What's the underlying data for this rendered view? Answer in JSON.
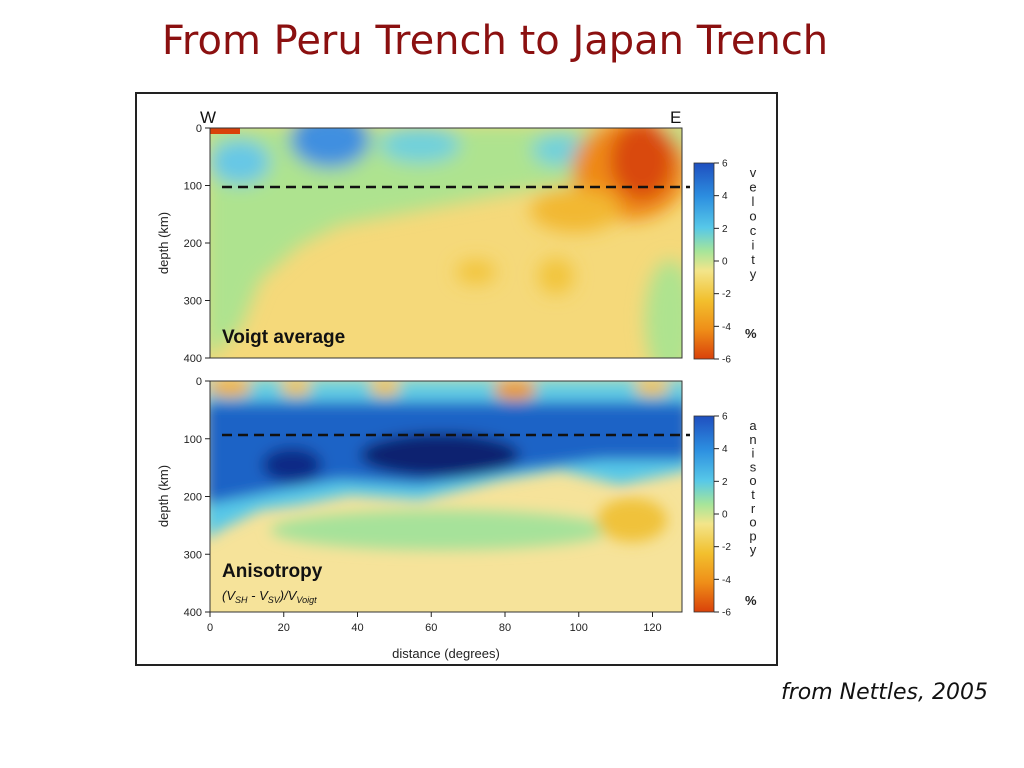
{
  "slide": {
    "title": "From Peru Trench to Japan Trench",
    "credit": "from Nettles, 2005"
  },
  "chart_data": [
    {
      "type": "heatmap",
      "panel_label": "Voigt average",
      "direction_labels": [
        "W",
        "E"
      ],
      "ylabel": "depth (km)",
      "xlim": [
        0,
        128
      ],
      "ylim": [
        0,
        400
      ],
      "y_ticks": [
        "0",
        "100",
        "200",
        "300",
        "400"
      ],
      "reference_depth_km": 107,
      "colorbar": {
        "label": "velocity",
        "unit": "%",
        "range": [
          -6,
          6
        ],
        "ticks": [
          "6",
          "4",
          "2",
          "0",
          "-2",
          "-4",
          "-6"
        ]
      },
      "features": [
        {
          "kind": "slow",
          "x": 115,
          "y": 60,
          "value": -5
        },
        {
          "kind": "slow",
          "x": 95,
          "y": 135,
          "value": -2.5
        },
        {
          "kind": "fast",
          "x": 32,
          "y": 40,
          "value": 3
        },
        {
          "kind": "fast",
          "x": 58,
          "y": 30,
          "value": 2
        },
        {
          "kind": "fast",
          "x": 10,
          "y": 60,
          "value": 1.5
        },
        {
          "kind": "slow",
          "x": 72,
          "y": 255,
          "value": -1.5
        },
        {
          "kind": "slow",
          "x": 92,
          "y": 265,
          "value": -1.5
        }
      ],
      "colors": {
        "fast": "#1f63c6",
        "slow": "#d9410a",
        "neutral": "#a8e38a",
        "mild_slow": "#f7d66b"
      }
    },
    {
      "type": "heatmap",
      "panel_label": "Anisotropy",
      "panel_formula": "(VSH - VSV)/VVoigt",
      "xlabel": "distance (degrees)",
      "ylabel": "depth (km)",
      "xlim": [
        0,
        128
      ],
      "ylim": [
        0,
        400
      ],
      "x_ticks": [
        "0",
        "20",
        "40",
        "60",
        "80",
        "100",
        "120"
      ],
      "y_ticks": [
        "0",
        "100",
        "200",
        "300",
        "400"
      ],
      "reference_depth_km": 95,
      "colorbar": {
        "label": "anisotropy",
        "unit": "%",
        "range": [
          -6,
          6
        ],
        "ticks": [
          "6",
          "4",
          "2",
          "0",
          "-2",
          "-4",
          "-6"
        ]
      },
      "features": [
        {
          "kind": "positive",
          "x": 60,
          "y": 135,
          "value": 6
        },
        {
          "kind": "positive",
          "x": 22,
          "y": 145,
          "value": 5
        },
        {
          "kind": "positive",
          "x": 105,
          "y": 125,
          "value": 4
        },
        {
          "kind": "negative",
          "x": 5,
          "y": 20,
          "value": -2
        },
        {
          "kind": "negative",
          "x": 80,
          "y": 20,
          "value": -2
        },
        {
          "kind": "negative",
          "x": 112,
          "y": 220,
          "value": -2
        }
      ],
      "colors": {
        "positive": "#0b2a86",
        "negative": "#e8a21a",
        "neutral": "#f5e6a0"
      }
    }
  ]
}
